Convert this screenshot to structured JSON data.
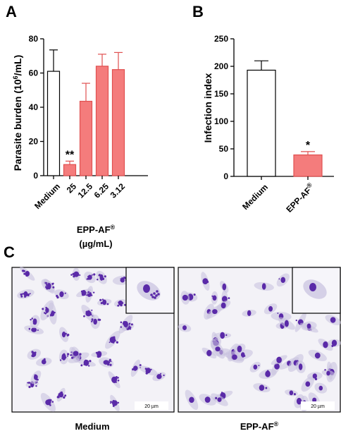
{
  "chart_data": [
    {
      "panel": "A",
      "type": "bar",
      "ylabel_main": "Parasite burden (10",
      "ylabel_sup": "6",
      "ylabel_end": "/mL)",
      "xlabel_line1_main": "EPP-AF",
      "xlabel_line1_sup": "®",
      "xlabel_line2": "(µg/mL)",
      "categories": [
        "Medium",
        "25",
        "12.5",
        "6.25",
        "3.12"
      ],
      "values": [
        61,
        6.5,
        43.5,
        64,
        62
      ],
      "errors": [
        12.5,
        2.0,
        10.5,
        7.0,
        10.0
      ],
      "significance": [
        "",
        "**",
        "",
        "",
        ""
      ],
      "ylim": [
        0,
        80
      ],
      "yticks": [
        0,
        20,
        40,
        60,
        80
      ],
      "colors": [
        "#ffffff",
        "#f47c7c",
        "#f47c7c",
        "#f47c7c",
        "#f47c7c"
      ],
      "stroke_colors": [
        "#000000",
        "#e05050",
        "#e05050",
        "#e05050",
        "#e05050"
      ]
    },
    {
      "panel": "B",
      "type": "bar",
      "ylabel_main": "Infection index",
      "categories": [
        "Medium",
        "EPP-AF"
      ],
      "category_sups": [
        "",
        "®"
      ],
      "values": [
        193,
        39
      ],
      "errors": [
        17,
        6
      ],
      "significance": [
        "",
        "*"
      ],
      "ylim": [
        0,
        250
      ],
      "yticks": [
        0,
        50,
        100,
        150,
        200,
        250
      ],
      "colors": [
        "#ffffff",
        "#f47c7c"
      ],
      "stroke_colors": [
        "#000000",
        "#e05050"
      ]
    }
  ],
  "panelC": {
    "letter": "C",
    "images": [
      {
        "caption_main": "Medium",
        "caption_sup": "",
        "scale_label": "20 µm"
      },
      {
        "caption_main": "EPP-AF",
        "caption_sup": "®",
        "scale_label": "20 µm"
      }
    ]
  },
  "colors": {
    "cell_stain": "#5a2aa8",
    "cytoplasm": "#c9c3e0",
    "background": "#f4f3f8"
  }
}
